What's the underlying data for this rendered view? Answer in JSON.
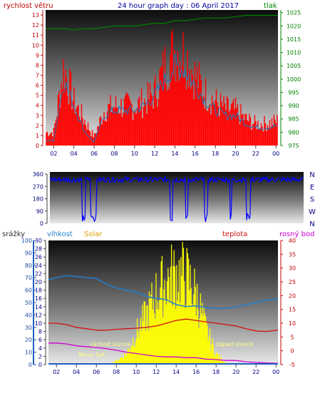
{
  "header": {
    "left_label": "rychlost větru",
    "title": "24 hour graph day : 06 April 2017",
    "right_label": "tlak"
  },
  "colors": {
    "wind": "#ff0000",
    "wind_avg": "#1f77b4",
    "pressure": "#008000",
    "direction": "#0000ff",
    "rain": "#1f5fbf",
    "humidity": "#1f7fd0",
    "solar": "#ffff00",
    "temp": "#d01010",
    "dew": "#d000d0",
    "header_left": "#c00000",
    "header_title": "#0000a0",
    "header_right": "#008000"
  },
  "time_ticks": [
    "02",
    "04",
    "06",
    "08",
    "10",
    "12",
    "14",
    "16",
    "18",
    "20",
    "22",
    "00"
  ],
  "chart_data": [
    {
      "type": "line",
      "name": "wind",
      "left_axis": {
        "ticks": [
          0,
          1,
          2,
          3,
          4,
          5,
          6,
          7,
          8,
          9,
          10,
          11,
          12,
          13
        ],
        "range": [
          0,
          13.5
        ]
      },
      "right_axis": {
        "ticks": [
          975,
          980,
          985,
          990,
          995,
          1000,
          1005,
          1010,
          1015,
          1020,
          1025
        ],
        "range": [
          975,
          1026
        ]
      },
      "x": [
        1.2,
        2,
        3,
        4,
        5,
        6,
        7,
        8,
        9,
        10,
        11,
        12,
        13,
        14,
        15,
        16,
        17,
        18,
        19,
        20,
        21,
        22,
        23,
        24.2
      ],
      "gust": [
        1.5,
        1.5,
        9,
        5,
        3,
        1,
        4,
        4.5,
        4.5,
        4.5,
        5,
        6,
        9,
        11,
        10.5,
        8,
        6,
        5,
        4.2,
        4,
        3,
        2.5,
        2.5,
        2.8
      ],
      "avg": [
        0.5,
        0.5,
        6.5,
        4,
        1.5,
        0.3,
        3,
        3.5,
        3.5,
        3.5,
        4,
        5,
        6.5,
        8,
        7.5,
        6,
        4.5,
        3.5,
        3,
        3,
        2.2,
        1.8,
        1.8,
        2
      ],
      "pressure": [
        1019,
        1019,
        1019,
        1018.5,
        1019,
        1019,
        1019.5,
        1020,
        1020,
        1020,
        1020.5,
        1021,
        1021,
        1022,
        1022,
        1022.5,
        1023,
        1023,
        1023,
        1023.5,
        1024,
        1024,
        1024,
        1024
      ]
    },
    {
      "type": "line",
      "name": "direction",
      "left_axis": {
        "ticks": [
          0,
          90,
          180,
          270,
          360
        ],
        "range": [
          0,
          360
        ]
      },
      "right_labels": [
        "N",
        "W",
        "S",
        "E",
        "N"
      ],
      "x": [
        1.2,
        24.2
      ],
      "level": [
        320,
        320
      ],
      "dropouts": [
        [
          4.1,
          4.4
        ],
        [
          4.9,
          5.4
        ],
        [
          12.1,
          12.3
        ],
        [
          13.5,
          13.7
        ],
        [
          15.2,
          15.5
        ],
        [
          17.5,
          17.7
        ],
        [
          19.0,
          19.4
        ]
      ]
    },
    {
      "type": "line",
      "name": "weather",
      "labels": {
        "rain": "srážky",
        "humidity": "vlhkost",
        "solar": "Solar",
        "temp": "teplota",
        "dew": "rosný bod"
      },
      "rain_axis": {
        "ticks": [
          0,
          10,
          20,
          30,
          40,
          50,
          60,
          70,
          80,
          90,
          100
        ],
        "range": [
          0,
          100
        ]
      },
      "humidity_axis": {
        "ticks": [
          0,
          2,
          4,
          6,
          8,
          10,
          12,
          14,
          16,
          18,
          20,
          22,
          24,
          26,
          28,
          30
        ],
        "range": [
          0,
          30
        ]
      },
      "temp_axis": {
        "ticks": [
          -5,
          0,
          5,
          10,
          15,
          20,
          25,
          30,
          35,
          40
        ],
        "range": [
          -5,
          40
        ]
      },
      "x": [
        1.2,
        2,
        3,
        4,
        5,
        6,
        7,
        8,
        9,
        10,
        11,
        12,
        13,
        14,
        15,
        16,
        17,
        18,
        19,
        20,
        21,
        22,
        23,
        24.2
      ],
      "humidity": [
        20.5,
        21,
        21.5,
        21.3,
        21,
        20.8,
        19.5,
        18.5,
        18,
        17.5,
        16.5,
        16,
        15.7,
        14.5,
        14,
        14.2,
        13.8,
        13.6,
        13.6,
        14,
        14.5,
        15,
        15.5,
        16
      ],
      "temp": [
        10,
        10,
        9.5,
        8.5,
        8,
        7.5,
        7.5,
        7.8,
        8,
        8.2,
        8.5,
        9,
        10,
        11,
        11.5,
        11,
        10.5,
        10,
        9.5,
        9,
        8,
        7.2,
        7,
        7.5
      ],
      "dew": [
        2.8,
        2.8,
        2.5,
        1.8,
        1.5,
        1.2,
        0.8,
        0.2,
        -0.5,
        -1,
        -1.5,
        -2,
        -2.2,
        -2.2,
        -2.5,
        -2.5,
        -3,
        -3.2,
        -3.5,
        -3.5,
        -4,
        -4.2,
        -4.4,
        -4.5
      ],
      "solar": [
        0,
        0,
        0,
        0,
        0,
        0,
        0,
        1,
        3,
        9,
        14,
        20,
        24,
        26,
        25,
        20,
        10,
        3,
        0.5,
        0,
        0,
        0,
        0,
        0
      ],
      "annotations": {
        "sunrise": "východ slunce",
        "sunset": "západ slunce",
        "moonset": "Moon Set"
      }
    }
  ]
}
